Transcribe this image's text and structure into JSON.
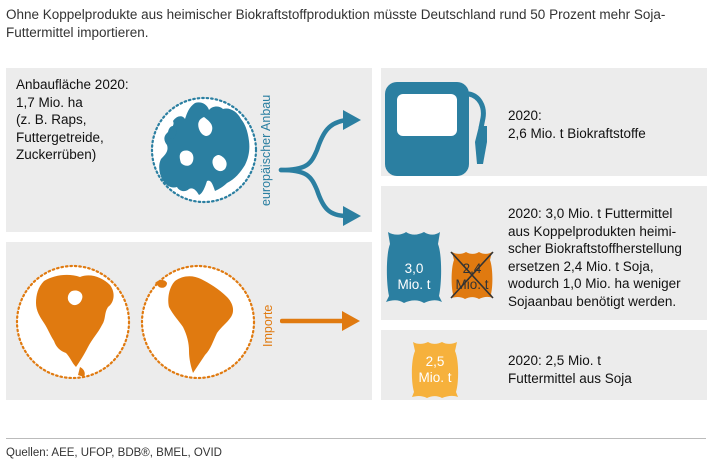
{
  "intro": "Ohne Koppelprodukte aus heimischer Biokraftstoffproduktion müsste Deutschland rund 50 Prozent mehr Soja-Futtermittel importieren.",
  "area": {
    "lines": [
      "Anbaufläche 2020:",
      "1,7 Mio. ha",
      "(z. B. Raps,",
      "Futtergetreide,",
      "Zuckerrüben)"
    ]
  },
  "label_european": "europäischer Anbau",
  "label_imports": "Importe",
  "fuel": {
    "lines": [
      "2020:",
      "2,6 Mio. t Biokraftstoffe"
    ]
  },
  "feed": {
    "lines": [
      "2020: 3,0 Mio. t Futtermittel",
      "aus Koppelprodukten heimi-",
      "scher Biokraftstoffherstellung",
      "ersetzen 2,4 Mio. t Soja,",
      "wodurch 1,0 Mio. ha weniger",
      "Sojaanbau benötigt werden."
    ]
  },
  "sack_blue": {
    "line1": "3,0",
    "line2": "Mio. t"
  },
  "sack_orange": {
    "line1": "2,4",
    "line2": "Mio. t"
  },
  "soy": {
    "lines": [
      "2020: 2,5 Mio. t",
      "Futtermittel aus Soja"
    ]
  },
  "sack_yellow": {
    "line1": "2,5",
    "line2": "Mio. t"
  },
  "sources": "Quellen: AEE, UFOP, BDB®, BMEL, OVID",
  "colors": {
    "blue": "#2b7fa1",
    "orange": "#e07a10",
    "yellow": "#f6b13c",
    "panel": "#ececec"
  },
  "icons": [
    "europe-globe-icon",
    "north-america-globe-icon",
    "south-america-globe-icon",
    "fuel-pump-icon",
    "feed-sack-icon",
    "crossed-soy-sack-icon",
    "soy-sack-icon",
    "branch-arrow-icon",
    "import-arrow-icon"
  ]
}
